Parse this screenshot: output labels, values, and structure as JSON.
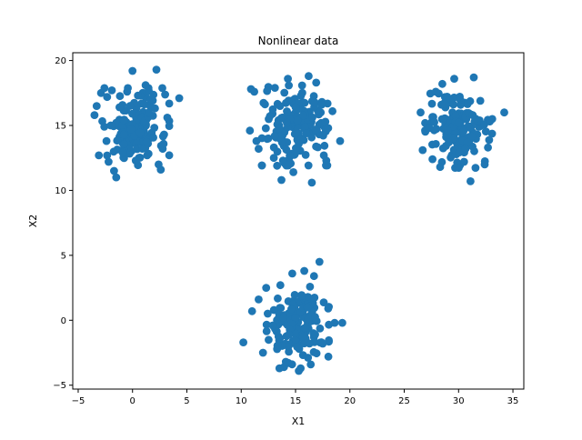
{
  "chart_data": {
    "type": "scatter",
    "title": "Nonlinear data",
    "xlabel": "X1",
    "ylabel": "X2",
    "xlim": [
      -5.5,
      36.0
    ],
    "ylim": [
      -5.3,
      20.6
    ],
    "xticks": [
      -5,
      0,
      5,
      10,
      15,
      20,
      25,
      30,
      35
    ],
    "yticks": [
      -5,
      0,
      5,
      10,
      15,
      20
    ],
    "grid": false,
    "marker_color": "#1f77b4",
    "clusters": [
      {
        "center": [
          0.3,
          14.8
        ],
        "spread": [
          1.4,
          1.4
        ],
        "count": 150
      },
      {
        "center": [
          15.2,
          15.0
        ],
        "spread": [
          1.5,
          1.4
        ],
        "count": 150
      },
      {
        "center": [
          30.0,
          14.6
        ],
        "spread": [
          1.4,
          1.3
        ],
        "count": 150
      },
      {
        "center": [
          15.2,
          -0.4
        ],
        "spread": [
          1.3,
          1.5
        ],
        "count": 150
      }
    ],
    "points": [
      [
        -3.5,
        15.8
      ],
      [
        -3.3,
        16.5
      ],
      [
        -3.1,
        12.7
      ],
      [
        -2.9,
        17.5
      ],
      [
        -2.6,
        14.9
      ],
      [
        -2.4,
        13.8
      ],
      [
        -2.2,
        12.2
      ],
      [
        -1.9,
        17.7
      ],
      [
        -1.7,
        11.5
      ],
      [
        -1.5,
        11.0
      ],
      [
        -1.2,
        16.4
      ],
      [
        -0.9,
        12.9
      ],
      [
        -0.5,
        17.6
      ],
      [
        0.0,
        19.2
      ],
      [
        0.5,
        17.3
      ],
      [
        1.2,
        18.1
      ],
      [
        1.7,
        17.0
      ],
      [
        2.2,
        19.3
      ],
      [
        2.4,
        12.0
      ],
      [
        2.6,
        11.6
      ],
      [
        2.9,
        14.3
      ],
      [
        3.2,
        15.6
      ],
      [
        4.3,
        17.1
      ],
      [
        -0.8,
        15.4
      ],
      [
        0.9,
        13.2
      ],
      [
        1.5,
        16.0
      ],
      [
        -2.0,
        15.0
      ],
      [
        0.3,
        12.3
      ],
      [
        10.9,
        17.8
      ],
      [
        11.2,
        17.6
      ],
      [
        10.8,
        14.6
      ],
      [
        11.4,
        13.8
      ],
      [
        11.6,
        13.2
      ],
      [
        12.5,
        14.0
      ],
      [
        13.0,
        12.5
      ],
      [
        13.1,
        17.9
      ],
      [
        13.3,
        11.9
      ],
      [
        13.7,
        10.8
      ],
      [
        14.3,
        18.6
      ],
      [
        14.8,
        11.4
      ],
      [
        15.5,
        17.3
      ],
      [
        16.2,
        18.8
      ],
      [
        16.5,
        10.6
      ],
      [
        16.9,
        18.3
      ],
      [
        17.4,
        16.6
      ],
      [
        17.6,
        12.7
      ],
      [
        18.0,
        14.8
      ],
      [
        18.4,
        16.1
      ],
      [
        19.1,
        13.8
      ],
      [
        14.2,
        15.2
      ],
      [
        16.0,
        14.4
      ],
      [
        15.3,
        13.6
      ],
      [
        15.0,
        16.4
      ],
      [
        26.5,
        16.0
      ],
      [
        26.7,
        13.1
      ],
      [
        27.3,
        14.8
      ],
      [
        27.6,
        12.4
      ],
      [
        27.9,
        17.6
      ],
      [
        28.3,
        11.8
      ],
      [
        28.5,
        18.2
      ],
      [
        29.1,
        13.7
      ],
      [
        29.6,
        18.6
      ],
      [
        30.5,
        12.2
      ],
      [
        31.1,
        10.7
      ],
      [
        31.4,
        18.7
      ],
      [
        32.0,
        16.9
      ],
      [
        32.4,
        12.0
      ],
      [
        32.7,
        13.3
      ],
      [
        33.1,
        15.5
      ],
      [
        34.2,
        16.0
      ],
      [
        30.0,
        15.2
      ],
      [
        29.0,
        14.6
      ],
      [
        31.3,
        15.8
      ],
      [
        10.2,
        -1.7
      ],
      [
        11.0,
        0.7
      ],
      [
        11.6,
        1.6
      ],
      [
        12.0,
        -2.5
      ],
      [
        12.3,
        2.5
      ],
      [
        12.9,
        -0.4
      ],
      [
        13.6,
        2.7
      ],
      [
        14.1,
        -3.2
      ],
      [
        14.7,
        3.6
      ],
      [
        15.3,
        -3.9
      ],
      [
        15.8,
        3.8
      ],
      [
        16.4,
        -3.4
      ],
      [
        16.7,
        3.4
      ],
      [
        17.2,
        4.5
      ],
      [
        17.5,
        -1.8
      ],
      [
        18.0,
        0.9
      ],
      [
        18.6,
        -0.2
      ],
      [
        19.3,
        -0.2
      ],
      [
        15.0,
        0.2
      ],
      [
        14.4,
        -1.1
      ],
      [
        16.1,
        1.0
      ]
    ]
  }
}
